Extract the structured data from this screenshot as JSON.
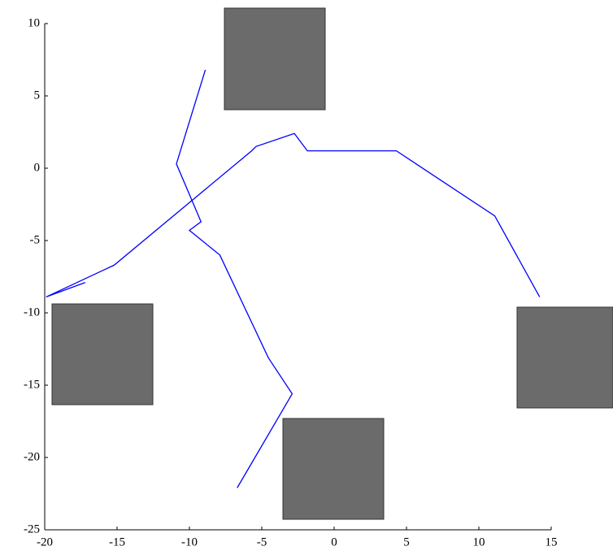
{
  "chart_data": {
    "type": "line",
    "xlim": [
      -20,
      15
    ],
    "ylim": [
      -25,
      10
    ],
    "xticks": [
      -20,
      -15,
      -10,
      -5,
      0,
      5,
      10,
      15
    ],
    "yticks": [
      -25,
      -20,
      -15,
      -10,
      -5,
      0,
      5,
      10
    ],
    "series": [
      {
        "color": "#0000ff",
        "x": [
          -17.2,
          -19.9,
          -15.2,
          -5.7,
          -5.4,
          -2.75,
          -1.85,
          4.3,
          11.1,
          14.2
        ],
        "values": [
          -7.9,
          -8.9,
          -6.7,
          1.2,
          1.5,
          2.4,
          1.2,
          1.2,
          -3.3,
          -8.9
        ]
      },
      {
        "color": "#0000ff",
        "x": [
          -8.9,
          -10.9,
          -9.2,
          -10.0,
          -7.9,
          -4.55,
          -2.9,
          -6.7
        ],
        "values": [
          6.8,
          0.3,
          -3.7,
          -4.3,
          -6.0,
          -13.1,
          -15.6,
          -22.1
        ]
      }
    ]
  }
}
